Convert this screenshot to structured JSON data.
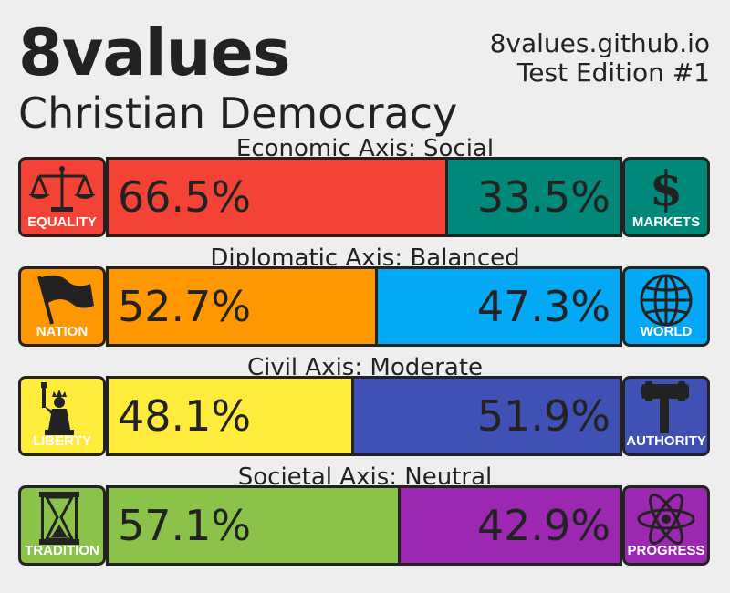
{
  "brand": "8values",
  "ideology": "Christian Democracy",
  "site": "8values.github.io",
  "edition": "Test Edition #1",
  "axes": [
    {
      "title": "Economic Axis: Social",
      "left": {
        "label": "EQUALITY",
        "value": 66.5,
        "text": "66.5%",
        "color": "#f44336",
        "icon": "scales-icon"
      },
      "right": {
        "label": "MARKETS",
        "value": 33.5,
        "text": "33.5%",
        "color": "#00897b",
        "icon": "dollar-icon"
      }
    },
    {
      "title": "Diplomatic Axis: Balanced",
      "left": {
        "label": "NATION",
        "value": 52.7,
        "text": "52.7%",
        "color": "#ff9800",
        "icon": "flag-icon"
      },
      "right": {
        "label": "WORLD",
        "value": 47.3,
        "text": "47.3%",
        "color": "#03a9f4",
        "icon": "globe-icon"
      }
    },
    {
      "title": "Civil Axis: Moderate",
      "left": {
        "label": "LIBERTY",
        "value": 48.1,
        "text": "48.1%",
        "color": "#ffeb3b",
        "icon": "liberty-statue-icon"
      },
      "right": {
        "label": "AUTHORITY",
        "value": 51.9,
        "text": "51.9%",
        "color": "#3f51b5",
        "icon": "gavel-icon"
      }
    },
    {
      "title": "Societal Axis: Neutral",
      "left": {
        "label": "TRADITION",
        "value": 57.1,
        "text": "57.1%",
        "color": "#8bc34a",
        "icon": "hourglass-icon"
      },
      "right": {
        "label": "PROGRESS",
        "value": 42.9,
        "text": "42.9%",
        "color": "#9c27b0",
        "icon": "atom-icon"
      }
    }
  ]
}
